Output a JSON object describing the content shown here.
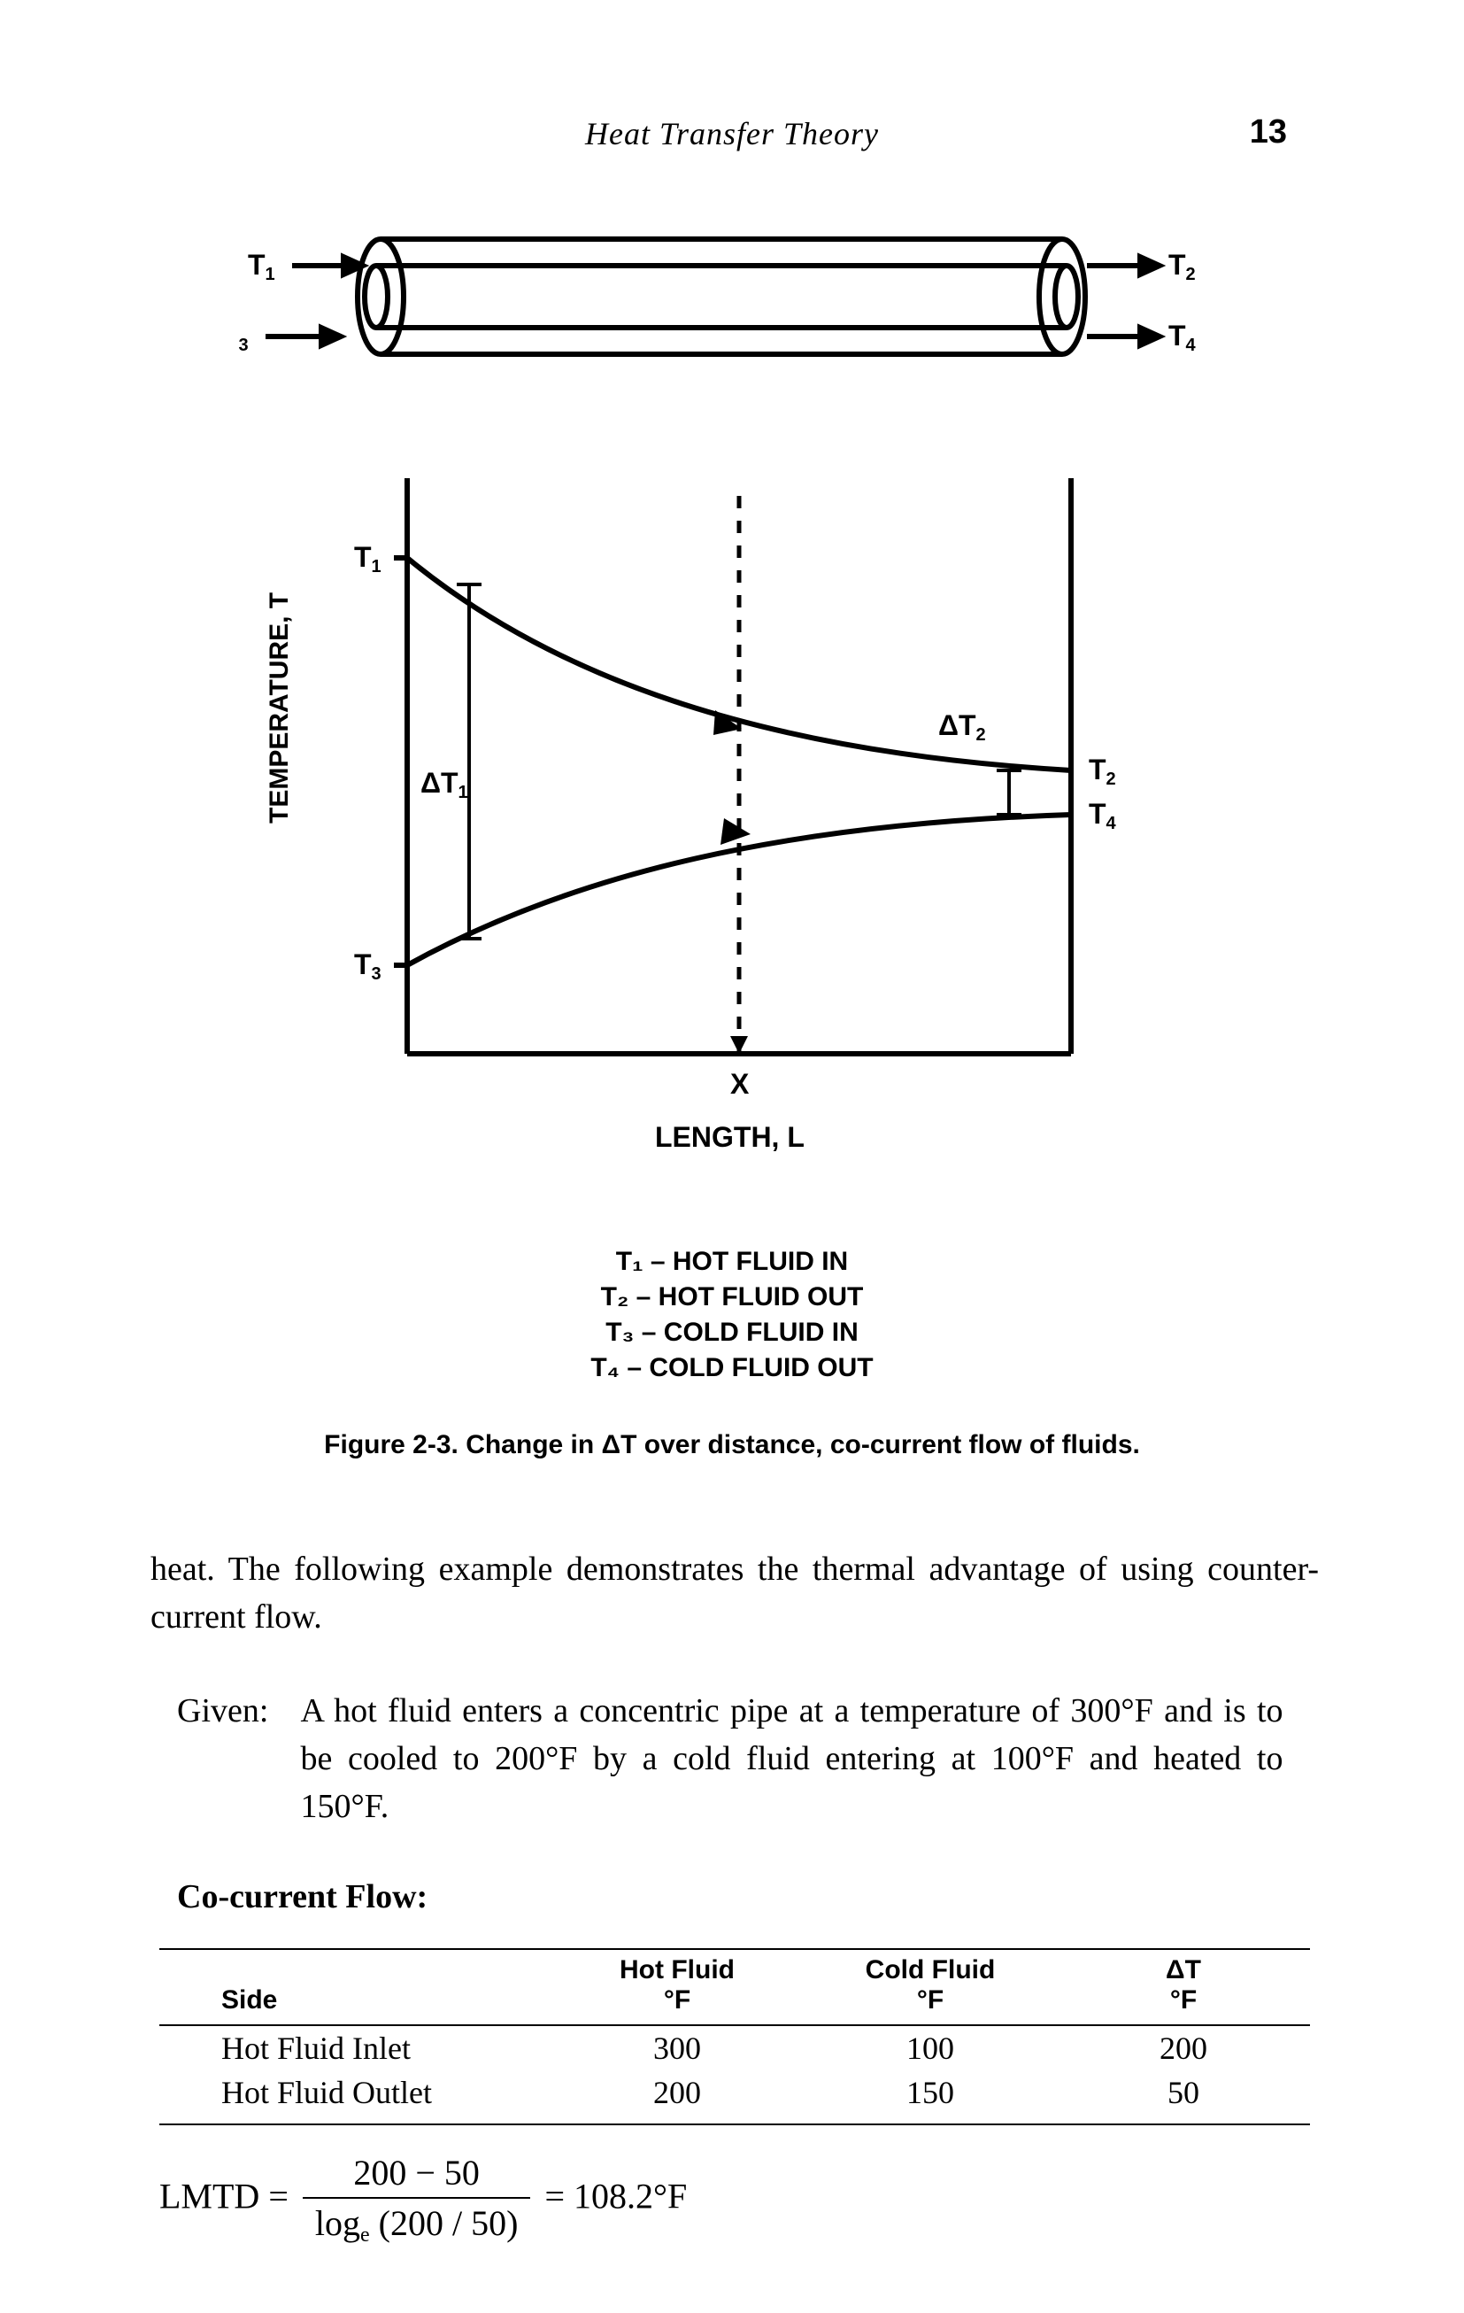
{
  "header_title": "Heat Transfer Theory",
  "page_number": "13",
  "pipe_diagram": {
    "labels": {
      "t1": "T₁",
      "t2": "T₂",
      "t3": "T₃",
      "t4": "T₄"
    },
    "stroke": "#000000",
    "stroke_width": 6
  },
  "chart": {
    "type": "line",
    "y_axis_label": "TEMPERATURE, T",
    "x_axis_label": "LENGTH, L",
    "x_marker": "X",
    "labels_left": {
      "top": "T₁",
      "bottom": "T₃",
      "delta": "ΔT₁"
    },
    "labels_right": {
      "top": "T₂",
      "bottom": "T₄",
      "delta": "ΔT₂"
    },
    "stroke": "#000000",
    "stroke_width": 5,
    "background_color": "#ffffff",
    "font_family": "Arial",
    "font_weight": "bold",
    "font_size_pt": 22
  },
  "legend": {
    "t1": "T₁ – HOT FLUID IN",
    "t2": "T₂ – HOT FLUID OUT",
    "t3": "T₃ – COLD FLUID IN",
    "t4": "T₄ – COLD FLUID OUT"
  },
  "caption": "Figure 2-3. Change in ΔT over distance, co-current flow of fluids.",
  "para": "heat. The following example demonstrates the thermal advantage of using counter-current flow.",
  "given_label": "Given:",
  "given_text": "A hot fluid enters a concentric pipe at a temperature of 300°F and is to be cooled to 200°F by a cold fluid entering at 100°F and heated to 150°F.",
  "subhead": "Co-current Flow:",
  "table": {
    "columns": [
      "Side",
      "Hot Fluid\n°F",
      "Cold Fluid\n°F",
      "ΔT\n°F"
    ],
    "col_widths_pct": [
      34,
      22,
      22,
      22
    ],
    "rows": [
      [
        "Hot Fluid Inlet",
        "300",
        "100",
        "200"
      ],
      [
        "Hot Fluid Outlet",
        "200",
        "150",
        "50"
      ]
    ]
  },
  "equation": {
    "lhs": "LMTD =",
    "num": "200 − 50",
    "den_pre": "log",
    "den_sub": "e",
    "den_post": " (200 / 50)",
    "rhs": "= 108.2°F"
  }
}
